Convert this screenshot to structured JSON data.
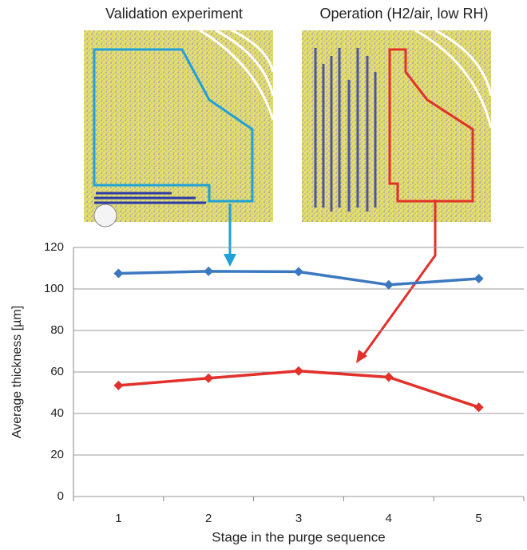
{
  "chart_data": {
    "type": "line",
    "annotations": [
      "Validation experiment",
      "Operation (H2/air, low RH)"
    ],
    "y_label": "Average thickness [µm]",
    "x_label": "Stage in the purge sequence",
    "categories": [
      "1",
      "2",
      "3",
      "4",
      "5"
    ],
    "series": [
      {
        "color": "#3c78c0",
        "values": [
          107.5,
          108.5,
          108.3,
          102,
          105
        ]
      },
      {
        "color": "#e2302a",
        "values": [
          53.5,
          57,
          60.5,
          57.5,
          43
        ]
      }
    ],
    "ylim": [
      0,
      120
    ],
    "yticks": [
      0,
      20,
      40,
      60,
      80,
      100,
      120
    ],
    "grid": true
  }
}
